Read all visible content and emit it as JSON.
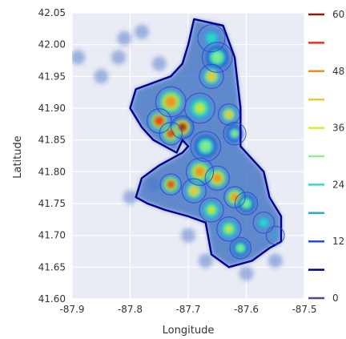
{
  "chart_data": {
    "type": "contour",
    "xlabel": "Longitude",
    "ylabel": "Latitude",
    "xlim": [
      -87.9,
      -87.5
    ],
    "ylim": [
      41.6,
      42.05
    ],
    "xticks": [
      "-87.9",
      "-87.8",
      "-87.7",
      "-87.6",
      "-87.5"
    ],
    "yticks": [
      "41.60",
      "41.65",
      "41.70",
      "41.75",
      "41.80",
      "41.85",
      "41.90",
      "41.95",
      "42.00",
      "42.05"
    ],
    "grid": true,
    "background": "#e9ecf5",
    "colorbar": {
      "ticks": [
        "0",
        "12",
        "24",
        "36",
        "48",
        "60"
      ],
      "range": [
        0,
        60
      ],
      "levels": [
        {
          "value": 0,
          "color": "#4b4b8a"
        },
        {
          "value": 6,
          "color": "#00008b"
        },
        {
          "value": 12,
          "color": "#1f4fd8"
        },
        {
          "value": 18,
          "color": "#2aa7e0"
        },
        {
          "value": 24,
          "color": "#2fe0c0"
        },
        {
          "value": 30,
          "color": "#8ff08a"
        },
        {
          "value": 36,
          "color": "#d8ea30"
        },
        {
          "value": 42,
          "color": "#f6c42a"
        },
        {
          "value": 48,
          "color": "#f08a22"
        },
        {
          "value": 54,
          "color": "#e03418"
        },
        {
          "value": 60,
          "color": "#8b1a10"
        }
      ]
    },
    "hotspots": [
      {
        "lon": -87.66,
        "lat": 42.01,
        "weight": 0.45,
        "spread": 0.018
      },
      {
        "lon": -87.65,
        "lat": 41.98,
        "weight": 0.55,
        "spread": 0.02
      },
      {
        "lon": -87.66,
        "lat": 41.95,
        "weight": 0.7,
        "spread": 0.016
      },
      {
        "lon": -87.73,
        "lat": 41.91,
        "weight": 0.85,
        "spread": 0.02
      },
      {
        "lon": -87.75,
        "lat": 41.88,
        "weight": 0.95,
        "spread": 0.016
      },
      {
        "lon": -87.71,
        "lat": 41.87,
        "weight": 1.0,
        "spread": 0.015
      },
      {
        "lon": -87.73,
        "lat": 41.86,
        "weight": 0.9,
        "spread": 0.015
      },
      {
        "lon": -87.68,
        "lat": 41.9,
        "weight": 0.6,
        "spread": 0.02
      },
      {
        "lon": -87.63,
        "lat": 41.89,
        "weight": 0.75,
        "spread": 0.014
      },
      {
        "lon": -87.62,
        "lat": 41.86,
        "weight": 0.5,
        "spread": 0.015
      },
      {
        "lon": -87.67,
        "lat": 41.84,
        "weight": 0.55,
        "spread": 0.02
      },
      {
        "lon": -87.68,
        "lat": 41.8,
        "weight": 0.85,
        "spread": 0.018
      },
      {
        "lon": -87.65,
        "lat": 41.79,
        "weight": 0.8,
        "spread": 0.016
      },
      {
        "lon": -87.73,
        "lat": 41.78,
        "weight": 0.9,
        "spread": 0.014
      },
      {
        "lon": -87.69,
        "lat": 41.77,
        "weight": 0.75,
        "spread": 0.016
      },
      {
        "lon": -87.62,
        "lat": 41.76,
        "weight": 0.85,
        "spread": 0.014
      },
      {
        "lon": -87.6,
        "lat": 41.75,
        "weight": 0.55,
        "spread": 0.015
      },
      {
        "lon": -87.66,
        "lat": 41.74,
        "weight": 0.65,
        "spread": 0.016
      },
      {
        "lon": -87.63,
        "lat": 41.71,
        "weight": 0.6,
        "spread": 0.016
      },
      {
        "lon": -87.61,
        "lat": 41.68,
        "weight": 0.55,
        "spread": 0.014
      },
      {
        "lon": -87.57,
        "lat": 41.72,
        "weight": 0.4,
        "spread": 0.014
      },
      {
        "lon": -87.55,
        "lat": 41.7,
        "weight": 0.3,
        "spread": 0.012
      }
    ],
    "outer_boundary": [
      [
        -87.69,
        42.04
      ],
      [
        -87.64,
        42.03
      ],
      [
        -87.62,
        41.98
      ],
      [
        -87.61,
        41.9
      ],
      [
        -87.61,
        41.84
      ],
      [
        -87.57,
        41.8
      ],
      [
        -87.56,
        41.76
      ],
      [
        -87.54,
        41.73
      ],
      [
        -87.54,
        41.69
      ],
      [
        -87.56,
        41.68
      ],
      [
        -87.59,
        41.66
      ],
      [
        -87.63,
        41.65
      ],
      [
        -87.66,
        41.67
      ],
      [
        -87.67,
        41.72
      ],
      [
        -87.7,
        41.73
      ],
      [
        -87.74,
        41.74
      ],
      [
        -87.77,
        41.75
      ],
      [
        -87.79,
        41.76
      ],
      [
        -87.78,
        41.79
      ],
      [
        -87.75,
        41.81
      ],
      [
        -87.71,
        41.83
      ],
      [
        -87.7,
        41.84
      ],
      [
        -87.71,
        41.85
      ],
      [
        -87.72,
        41.83
      ],
      [
        -87.76,
        41.85
      ],
      [
        -87.78,
        41.87
      ],
      [
        -87.8,
        41.9
      ],
      [
        -87.79,
        41.93
      ],
      [
        -87.76,
        41.94
      ],
      [
        -87.73,
        41.95
      ],
      [
        -87.71,
        41.97
      ],
      [
        -87.7,
        42.0
      ]
    ],
    "scatter_halo": [
      {
        "lon": -87.89,
        "lat": 41.98
      },
      {
        "lon": -87.82,
        "lat": 41.98
      },
      {
        "lon": -87.81,
        "lat": 42.01
      },
      {
        "lon": -87.78,
        "lat": 42.02
      },
      {
        "lon": -87.75,
        "lat": 41.97
      },
      {
        "lon": -87.85,
        "lat": 41.95
      },
      {
        "lon": -87.76,
        "lat": 41.78
      },
      {
        "lon": -87.8,
        "lat": 41.76
      },
      {
        "lon": -87.7,
        "lat": 41.7
      },
      {
        "lon": -87.67,
        "lat": 41.66
      },
      {
        "lon": -87.55,
        "lat": 41.66
      },
      {
        "lon": -87.6,
        "lat": 41.64
      }
    ]
  }
}
